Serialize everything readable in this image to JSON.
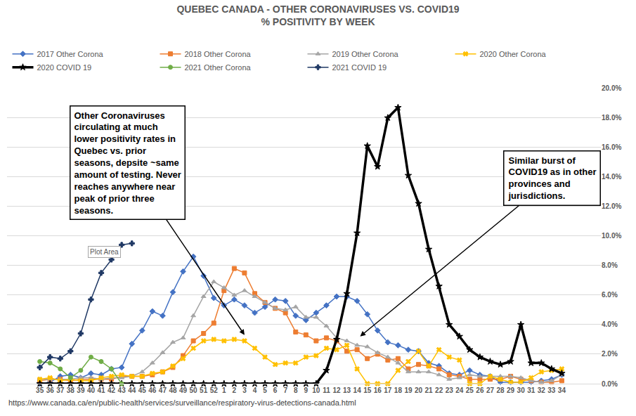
{
  "chart_data": {
    "type": "line",
    "title": "QUEBEC CANADA - OTHER CORONAVIRUSES VS. COVID19\n% POSITIVITY BY WEEK",
    "categories": [
      "35",
      "36",
      "37",
      "38",
      "39",
      "40",
      "41",
      "42",
      "43",
      "44",
      "45",
      "46",
      "47",
      "48",
      "49",
      "50",
      "51",
      "52",
      "1",
      "2",
      "3",
      "4",
      "5",
      "6",
      "7",
      "8",
      "9",
      "10",
      "11",
      "12",
      "13",
      "14",
      "15",
      "16",
      "17",
      "18",
      "19",
      "20",
      "21",
      "22",
      "23",
      "24",
      "25",
      "26",
      "27",
      "28",
      "29",
      "30",
      "31",
      "32",
      "33",
      "34"
    ],
    "series": [
      {
        "name": "2017 Other Corona",
        "color": "#4472c4",
        "marker": "diamond",
        "line_style": "solid",
        "values": [
          0.0,
          0.1,
          0.5,
          0.6,
          0.4,
          0.7,
          0.6,
          1.0,
          1.1,
          2.7,
          3.6,
          4.9,
          4.6,
          6.2,
          7.6,
          8.6,
          7.3,
          5.8,
          5.3,
          5.7,
          5.3,
          4.8,
          5.2,
          5.7,
          5.6,
          4.6,
          4.3,
          4.8,
          5.3,
          5.9,
          5.9,
          5.6,
          4.7,
          3.6,
          2.8,
          2.6,
          2.3,
          2.2,
          1.4,
          1.2,
          0.7,
          0.6,
          0.9,
          0.6,
          0.5,
          0.1,
          0.1,
          0.1,
          0.1,
          0.2,
          0.3,
          0.6
        ]
      },
      {
        "name": "2018 Other Corona",
        "color": "#ed7d31",
        "marker": "square",
        "line_style": "solid",
        "values": [
          0.2,
          0.3,
          0.3,
          0.2,
          0.3,
          0.3,
          0.3,
          0.3,
          0.5,
          0.5,
          0.5,
          0.6,
          0.8,
          1.1,
          1.9,
          2.9,
          3.4,
          4.1,
          6.3,
          7.8,
          7.5,
          6.1,
          5.5,
          5.1,
          4.8,
          3.5,
          3.3,
          2.9,
          3.1,
          2.9,
          2.2,
          2.3,
          1.7,
          2.0,
          1.6,
          1.7,
          1.0,
          1.3,
          1.2,
          1.0,
          0.6,
          0.5,
          0.3,
          0.3,
          0.3,
          0.3,
          0.5,
          0.3,
          0.2,
          0.1,
          0.1,
          0.2
        ]
      },
      {
        "name": "2019 Other Corona",
        "color": "#a5a5a5",
        "marker": "triangle",
        "line_style": "solid",
        "values": [
          0.3,
          0.3,
          0.3,
          0.3,
          0.4,
          0.4,
          0.3,
          0.4,
          0.4,
          0.5,
          0.8,
          1.4,
          2.1,
          2.8,
          3.1,
          4.6,
          5.9,
          6.9,
          6.5,
          6.0,
          6.3,
          5.9,
          5.5,
          5.1,
          5.0,
          5.2,
          4.5,
          4.5,
          3.9,
          3.1,
          2.9,
          2.6,
          2.5,
          2.1,
          1.8,
          1.4,
          0.8,
          0.8,
          0.8,
          0.6,
          0.3,
          0.4,
          0.6,
          0.5,
          0.5,
          0.5,
          0.5,
          0.4,
          0.2,
          0.1,
          0.2,
          0.6
        ]
      },
      {
        "name": "2020 Other Corona",
        "color": "#ffc000",
        "marker": "x",
        "line_style": "solid",
        "values": [
          0.3,
          0.4,
          0.2,
          0.3,
          0.2,
          0.2,
          0.4,
          0.5,
          0.6,
          0.5,
          0.5,
          0.7,
          0.8,
          1.2,
          1.7,
          2.4,
          2.9,
          3.0,
          2.9,
          3.0,
          2.9,
          2.4,
          1.8,
          1.3,
          1.4,
          1.4,
          1.8,
          1.9,
          2.4,
          2.3,
          2.6,
          1.0,
          0.0,
          0.0,
          0.0,
          0.9,
          1.5,
          2.2,
          1.2,
          2.3,
          1.8,
          1.6,
          0.0,
          0.0,
          0.5,
          0.3,
          0.1,
          0.1,
          0.4,
          0.8,
          0.9,
          1.0
        ]
      },
      {
        "name": "2020 COVID 19",
        "color": "#000000",
        "marker": "star",
        "line_style": "thick",
        "values": [
          0.0,
          0.0,
          0.0,
          0.0,
          0.0,
          0.0,
          0.0,
          0.0,
          0.0,
          0.0,
          0.0,
          0.0,
          0.0,
          0.0,
          0.0,
          0.0,
          0.0,
          0.0,
          0.0,
          0.0,
          0.0,
          0.0,
          0.0,
          0.0,
          0.0,
          0.0,
          0.0,
          0.0,
          0.9,
          3.0,
          6.1,
          10.2,
          16.1,
          14.7,
          18.0,
          18.7,
          14.1,
          12.2,
          9.1,
          6.6,
          4.0,
          3.2,
          2.3,
          1.8,
          1.5,
          1.3,
          1.5,
          4.0,
          1.4,
          1.4,
          1.0,
          0.7
        ]
      },
      {
        "name": "2021 Other Corona",
        "color": "#70ad47",
        "marker": "circle",
        "line_style": "solid",
        "values": [
          1.5,
          1.4,
          1.0,
          0.4,
          0.9,
          1.8,
          1.5,
          1.0,
          0.0,
          null,
          null,
          null,
          null,
          null,
          null,
          null,
          null,
          null,
          null,
          null,
          null,
          null,
          null,
          null,
          null,
          null,
          null,
          null,
          null,
          null,
          null,
          null,
          null,
          null,
          null,
          null,
          null,
          null,
          null,
          null,
          null,
          null,
          null,
          null,
          null,
          null,
          null,
          null,
          null,
          null,
          null,
          null
        ]
      },
      {
        "name": "2021 COVID 19",
        "color": "#1f3864",
        "marker": "plus",
        "line_style": "solid",
        "values": [
          1.1,
          1.8,
          1.7,
          2.2,
          3.4,
          5.7,
          7.5,
          8.4,
          9.4,
          9.5,
          null,
          null,
          null,
          null,
          null,
          null,
          null,
          null,
          null,
          null,
          null,
          null,
          null,
          null,
          null,
          null,
          null,
          null,
          null,
          null,
          null,
          null,
          null,
          null,
          null,
          null,
          null,
          null,
          null,
          null,
          null,
          null,
          null,
          null,
          null,
          null,
          null,
          null,
          null,
          null,
          null,
          null
        ]
      }
    ],
    "ylim": [
      0,
      20
    ],
    "yticks": [
      {
        "value": 0,
        "label": "0.0%"
      },
      {
        "value": 2,
        "label": "2.0%"
      },
      {
        "value": 4,
        "label": "4.0%"
      },
      {
        "value": 6,
        "label": "6.0%"
      },
      {
        "value": 8,
        "label": "8.0%"
      },
      {
        "value": 10,
        "label": "10.0%"
      },
      {
        "value": 12,
        "label": "12.0%"
      },
      {
        "value": 14,
        "label": "14.0%"
      },
      {
        "value": 16,
        "label": "16.0%"
      },
      {
        "value": 18,
        "label": "18.0%"
      },
      {
        "value": 20,
        "label": "20.0%"
      }
    ],
    "grid": true,
    "legend": "top",
    "annotations": [
      "Other Coronaviruses\ncirculating at much\nlower positivity rates in\nQuebec vs. prior\nseasons, depsite ~same\namount of testing. Never\nreaches anywhere near\npeak of prior three\nseasons.",
      "Similar burst of\nCOVID19 as in other\nprovinces and\njurisdictions.",
      "Plot Area",
      "https://www.canada.ca/en/public-health/services/surveillance/respiratory-virus-detections-canada.html"
    ]
  }
}
